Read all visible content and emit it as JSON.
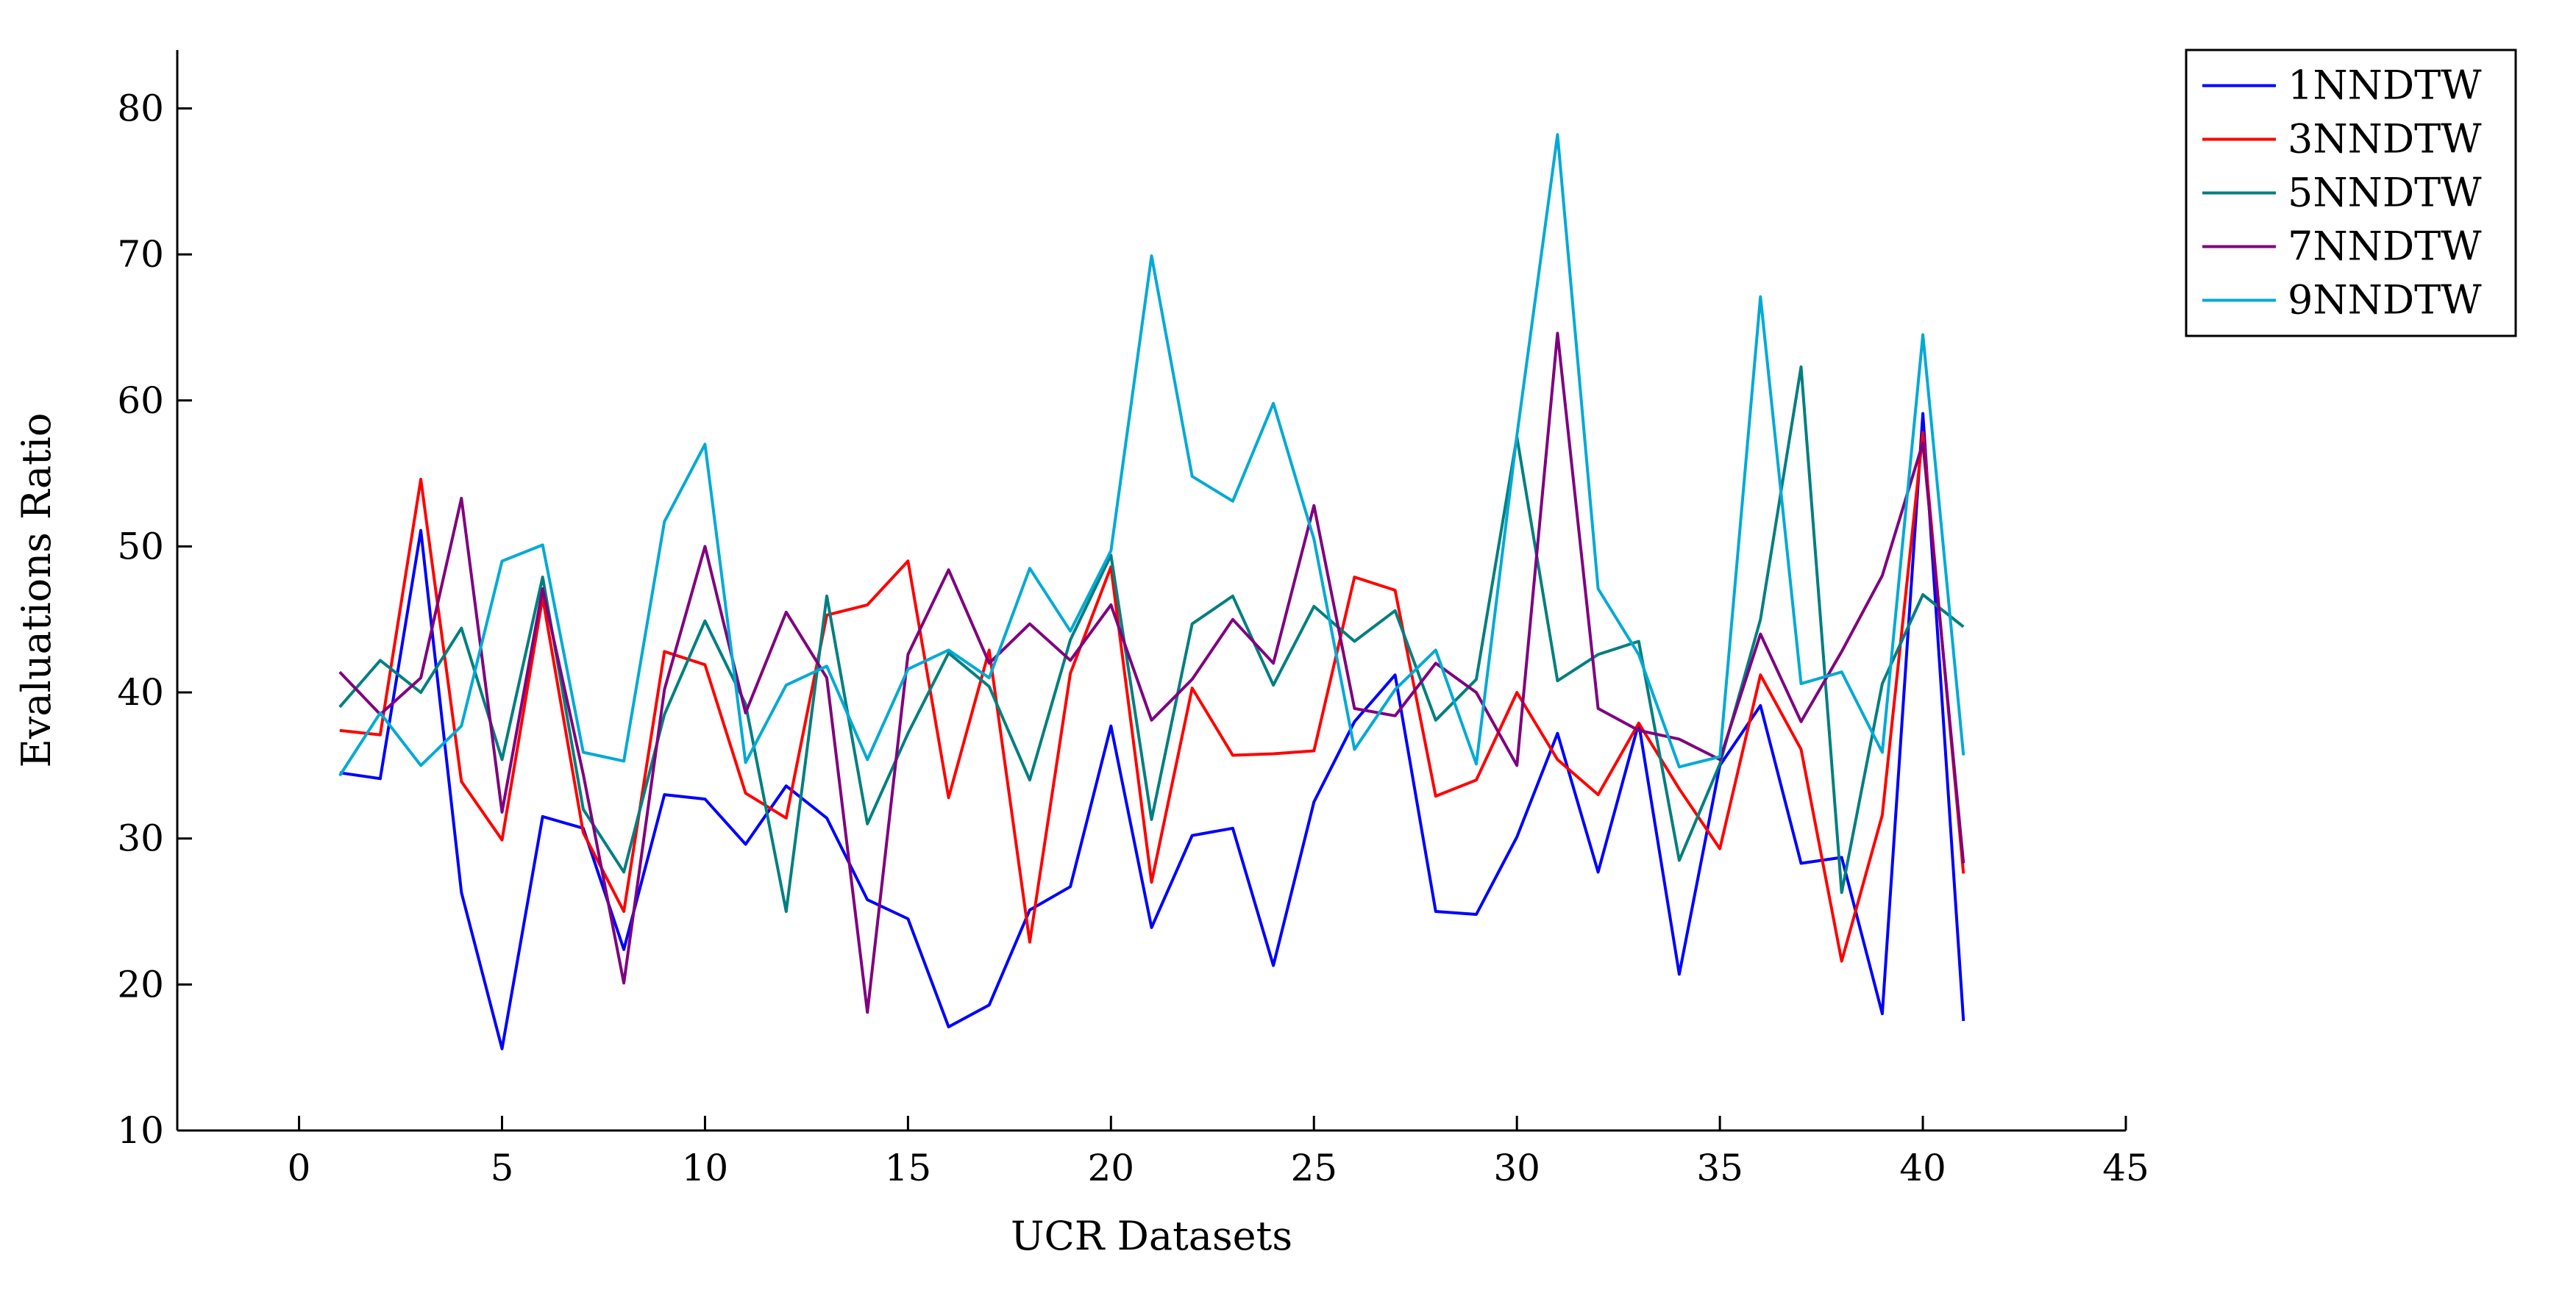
{
  "chart_data": {
    "type": "line",
    "xlabel": "UCR Datasets",
    "ylabel": "Evaluations Ratio",
    "xlim": [
      -3,
      45
    ],
    "ylim": [
      10,
      84
    ],
    "xticks": [
      0,
      5,
      10,
      15,
      20,
      25,
      30,
      35,
      40,
      45
    ],
    "yticks": [
      10,
      20,
      30,
      40,
      50,
      60,
      70,
      80
    ],
    "grid": false,
    "legend_position": "outside-top-right",
    "x": [
      1,
      2,
      3,
      4,
      5,
      6,
      7,
      8,
      9,
      10,
      11,
      12,
      13,
      14,
      15,
      16,
      17,
      18,
      19,
      20,
      21,
      22,
      23,
      24,
      25,
      26,
      27,
      28,
      29,
      30,
      31,
      32,
      33,
      34,
      35,
      36,
      37,
      38,
      39,
      40,
      41
    ],
    "series": [
      {
        "name": "1NNDTW",
        "color": "#0000ff",
        "values": [
          34.5,
          34.1,
          51.1,
          26.3,
          15.6,
          31.5,
          30.7,
          22.4,
          33.0,
          32.7,
          29.6,
          33.6,
          31.4,
          25.8,
          24.5,
          17.1,
          18.6,
          25.1,
          26.7,
          37.7,
          23.9,
          30.2,
          30.7,
          21.3,
          32.5,
          38.0,
          41.2,
          25.0,
          24.8,
          30.1,
          37.2,
          27.7,
          37.9,
          20.7,
          35.0,
          39.1,
          28.3,
          28.7,
          18.0,
          59.1,
          17.5
        ]
      },
      {
        "name": "3NNDTW",
        "color": "#ff0000",
        "values": [
          37.4,
          37.1,
          54.6,
          33.9,
          29.9,
          46.5,
          30.4,
          25.0,
          42.8,
          41.9,
          33.1,
          31.4,
          45.3,
          46.0,
          49.0,
          32.8,
          42.9,
          22.9,
          41.3,
          48.6,
          27.0,
          40.3,
          35.7,
          35.8,
          36.0,
          47.9,
          47.0,
          32.9,
          34.0,
          40.0,
          35.4,
          33.0,
          37.9,
          33.4,
          29.3,
          41.2,
          36.1,
          21.6,
          31.6,
          57.8,
          27.6
        ]
      },
      {
        "name": "5NNDTW",
        "color": "#007f7f",
        "values": [
          39.0,
          42.2,
          40.0,
          44.4,
          35.4,
          47.9,
          32.0,
          27.7,
          38.5,
          44.9,
          39.2,
          25.0,
          46.6,
          31.0,
          37.2,
          42.7,
          40.4,
          34.0,
          43.6,
          49.4,
          31.3,
          44.7,
          46.6,
          40.5,
          45.9,
          43.5,
          45.6,
          38.1,
          40.9,
          57.5,
          40.8,
          42.6,
          43.5,
          28.5,
          35.1,
          45.0,
          62.3,
          26.3,
          40.6,
          46.7,
          44.5
        ]
      },
      {
        "name": "7NNDTW",
        "color": "#7f007f",
        "values": [
          41.4,
          38.5,
          41.0,
          53.3,
          31.8,
          47.1,
          34.4,
          20.1,
          40.2,
          50.0,
          38.6,
          45.5,
          41.0,
          18.1,
          42.6,
          48.4,
          42.0,
          44.7,
          42.2,
          46.0,
          38.1,
          40.9,
          45.0,
          42.0,
          52.8,
          38.9,
          38.4,
          42.0,
          40.0,
          35.0,
          64.6,
          38.9,
          37.4,
          36.8,
          35.4,
          44.0,
          38.0,
          42.8,
          48.0,
          57.1,
          28.3
        ]
      },
      {
        "name": "9NNDTW",
        "color": "#00aad4",
        "values": [
          34.3,
          38.6,
          35.0,
          37.7,
          49.0,
          50.1,
          35.9,
          35.3,
          51.7,
          57.0,
          35.2,
          40.5,
          41.8,
          35.4,
          41.6,
          42.9,
          41.0,
          48.5,
          44.2,
          49.7,
          69.9,
          54.8,
          53.1,
          59.8,
          50.5,
          36.1,
          40.2,
          42.9,
          35.1,
          57.6,
          78.2,
          47.1,
          42.6,
          34.9,
          35.6,
          67.1,
          40.6,
          41.4,
          35.9,
          64.5,
          35.7
        ]
      }
    ]
  }
}
